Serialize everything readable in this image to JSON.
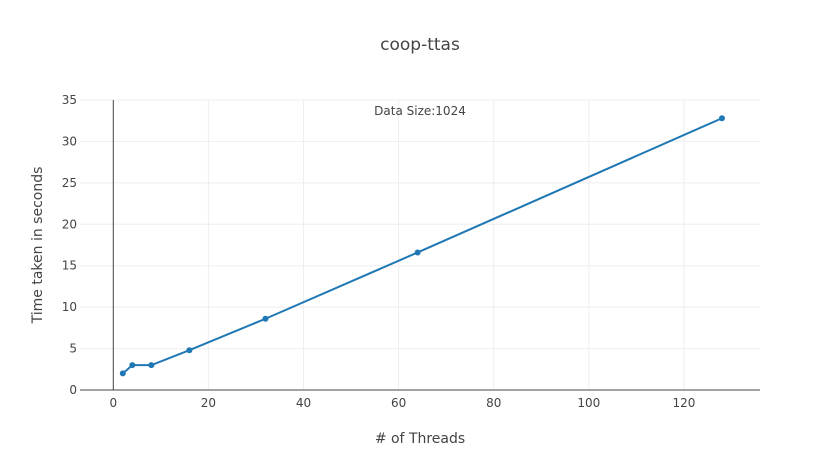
{
  "chart_data": {
    "type": "line",
    "title": "coop-ttas",
    "xlabel": "# of Threads",
    "ylabel": "Time taken in seconds",
    "annotation": "Data Size:1024",
    "xlim": [
      -7,
      136
    ],
    "ylim": [
      0,
      35
    ],
    "x_ticks": [
      0,
      20,
      40,
      60,
      80,
      100,
      120
    ],
    "y_ticks": [
      0,
      5,
      10,
      15,
      20,
      25,
      30,
      35
    ],
    "grid": true,
    "series": [
      {
        "x": [
          2,
          4,
          8,
          16,
          32,
          64,
          128
        ],
        "y": [
          2.0,
          3.0,
          3.0,
          4.8,
          8.6,
          16.6,
          32.8
        ],
        "color": "#1f77b4"
      }
    ]
  }
}
